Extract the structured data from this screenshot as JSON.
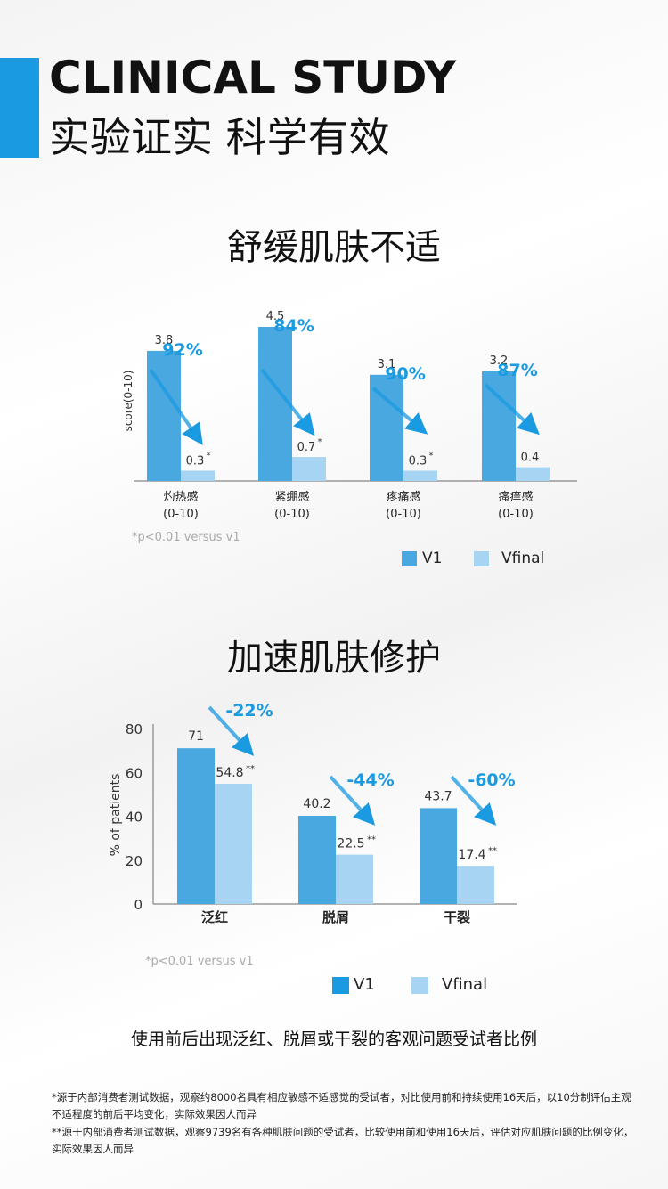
{
  "header": {
    "title_en": "CLINICAL STUDY",
    "title_cn": "实验证实 科学有效"
  },
  "colors": {
    "accent": "#1a9ae0",
    "v1": "#4aa8e0",
    "vfinal": "#a7d4f2",
    "percent_text": "#1a9ae0"
  },
  "section1": {
    "title": "舒缓肌肤不适",
    "note": "*p<0.01 versus v1",
    "legend": [
      "V1",
      "Vfinal"
    ]
  },
  "section2": {
    "title": "加速肌肤修护",
    "note": "*p<0.01 versus v1",
    "legend": [
      "V1",
      "Vfinal"
    ]
  },
  "caption": "使用前后出现泛红、脱屑或干裂的客观问题受试者比例",
  "footnotes": [
    "*源于内部消费者测试数据，观察约8000名具有相应敏感不适感觉的受试者，对比使用前和持续使用16天后，以10分制评估主观不适程度的前后平均变化，实际效果因人而异",
    "**源于内部消费者测试数据，观察9739名有各种肌肤问题的受试者，比较使用前和使用16天后，评估对应肌肤问题的比例变化，实际效果因人而异"
  ],
  "chart_data": [
    {
      "type": "bar",
      "ylabel": "score(0-10)",
      "ylim": [
        0,
        4.5
      ],
      "categories": [
        "灼热感",
        "紧绷感",
        "疼痛感",
        "瘙痒感"
      ],
      "category_sub": [
        "(0-10)",
        "(0-10)",
        "(0-10)",
        "(0-10)"
      ],
      "series": [
        {
          "name": "V1",
          "values": [
            3.8,
            4.5,
            3.1,
            3.2
          ],
          "labels": [
            "3.8",
            "4.5",
            "3.1",
            "3.2"
          ]
        },
        {
          "name": "Vfinal",
          "values": [
            0.3,
            0.7,
            0.3,
            0.4
          ],
          "labels": [
            "0.3",
            "0.7",
            "0.3",
            "0.4"
          ],
          "marks": [
            "*",
            "*",
            "*",
            ""
          ]
        }
      ],
      "reductions": [
        "92%",
        "84%",
        "90%",
        "87%"
      ],
      "legend_position": "bottom-right"
    },
    {
      "type": "bar",
      "ylabel": "% of patients",
      "ylim": [
        0,
        80
      ],
      "yticks": [
        0,
        20,
        40,
        60,
        80
      ],
      "categories": [
        "泛红",
        "脱屑",
        "干裂"
      ],
      "series": [
        {
          "name": "V1",
          "values": [
            71,
            40.2,
            43.7
          ],
          "labels": [
            "71",
            "40.2",
            "43.7"
          ]
        },
        {
          "name": "Vfinal",
          "values": [
            54.8,
            22.5,
            17.4
          ],
          "labels": [
            "54.8",
            "22.5",
            "17.4"
          ],
          "marks": [
            "**",
            "**",
            "**"
          ]
        }
      ],
      "reductions": [
        "-22%",
        "-44%",
        "-60%"
      ],
      "legend_position": "bottom-right"
    }
  ]
}
